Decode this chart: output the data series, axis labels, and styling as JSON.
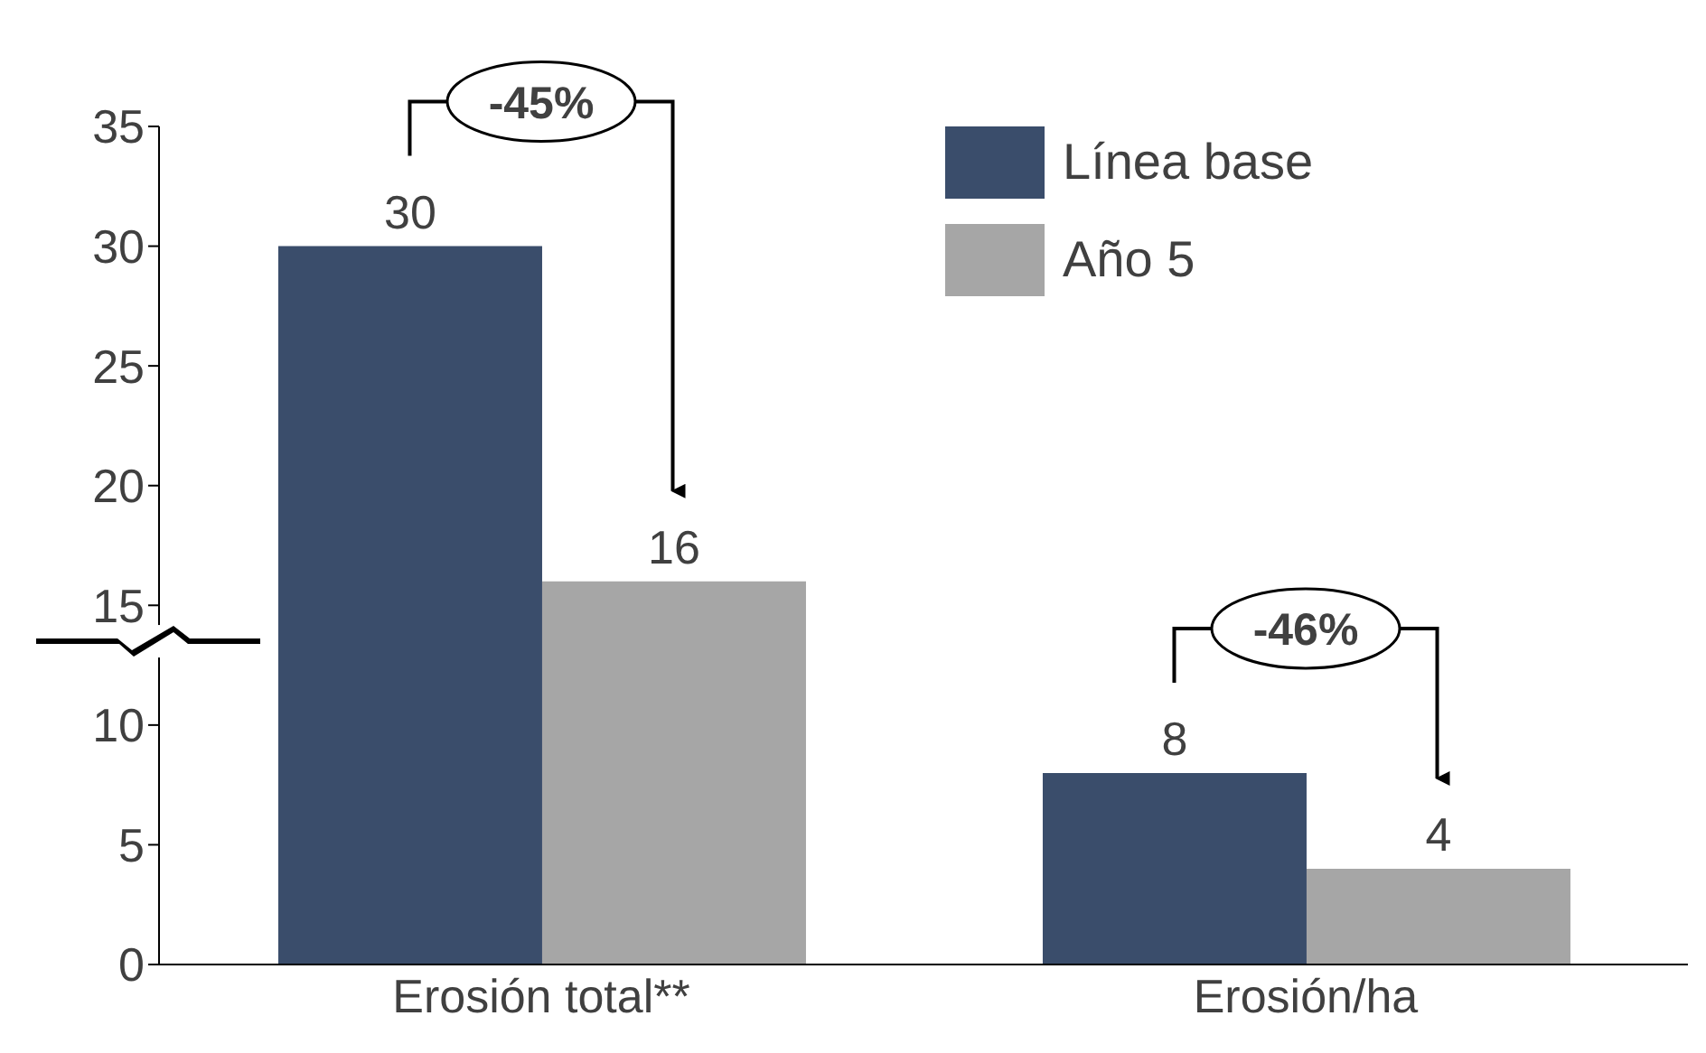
{
  "chart_data": {
    "type": "bar",
    "categories": [
      "Erosión total**",
      "Erosión/ha"
    ],
    "series": [
      {
        "name": "Línea base",
        "color": "#3a4d6b",
        "values": [
          30,
          8
        ]
      },
      {
        "name": "Año 5",
        "color": "#a6a6a6",
        "values": [
          16,
          4
        ]
      }
    ],
    "ylim": [
      0,
      35
    ],
    "yticks": [
      0,
      5,
      10,
      15,
      20,
      25,
      30,
      35
    ],
    "grid": false,
    "legend": "top right",
    "data_labels": true,
    "annotations": [
      "-45%",
      "-46%"
    ]
  }
}
